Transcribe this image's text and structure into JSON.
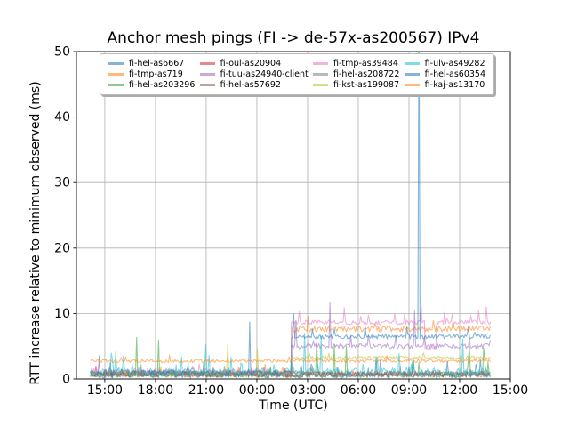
{
  "title": "Anchor mesh pings (FI -> de-57x-as200567) IPv4",
  "axes": {
    "xlabel": "Time (UTC)",
    "ylabel": "RTT increase relative to minimum observed (ms)",
    "xlim_hours": [
      -1.68,
      24.0
    ],
    "ylim": [
      0,
      50
    ],
    "x_ticks": [
      {
        "t": 0,
        "label": "15:00"
      },
      {
        "t": 3,
        "label": "18:00"
      },
      {
        "t": 6,
        "label": "21:00"
      },
      {
        "t": 9,
        "label": "00:00"
      },
      {
        "t": 12,
        "label": "03:00"
      },
      {
        "t": 15,
        "label": "06:00"
      },
      {
        "t": 18,
        "label": "09:00"
      },
      {
        "t": 21,
        "label": "12:00"
      },
      {
        "t": 24,
        "label": "15:00"
      }
    ],
    "y_ticks": [
      {
        "v": 0,
        "label": "0"
      },
      {
        "v": 10,
        "label": "10"
      },
      {
        "v": 20,
        "label": "20"
      },
      {
        "v": 30,
        "label": "30"
      },
      {
        "v": 40,
        "label": "40"
      },
      {
        "v": 50,
        "label": "50"
      }
    ],
    "grid": true,
    "grid_color": "#b0b0b0",
    "spine_color": "#000000"
  },
  "legend": {
    "position": "upper center",
    "columns": 4,
    "items": [
      {
        "label": "fi-hel-as6667",
        "color": "#1f77b4"
      },
      {
        "label": "fi-tmp-as719",
        "color": "#ff7f0e"
      },
      {
        "label": "fi-hel-as203296",
        "color": "#2ca02c"
      },
      {
        "label": "fi-oul-as20904",
        "color": "#d62728"
      },
      {
        "label": "fi-tuu-as24940-client",
        "color": "#9467bd"
      },
      {
        "label": "fi-hel-as57692",
        "color": "#8c564b"
      },
      {
        "label": "fi-tmp-as39484",
        "color": "#e377c2"
      },
      {
        "label": "fi-hel-as208722",
        "color": "#7f7f7f"
      },
      {
        "label": "fi-kst-as199087",
        "color": "#bcbd22"
      },
      {
        "label": "fi-ulv-as49282",
        "color": "#17becf"
      },
      {
        "label": "fi-hel-as60354",
        "color": "#1f77b4"
      },
      {
        "label": "fi-kaj-as13170",
        "color": "#ff7f0e"
      }
    ]
  },
  "chart_data": {
    "type": "line",
    "title": "Anchor mesh pings (FI -> de-57x-as200567) IPv4",
    "xlabel": "Time (UTC)",
    "ylabel": "RTT increase relative to minimum observed (ms)",
    "x_unit": "hours relative to first 15:00 tick",
    "time_range": [
      -0.85,
      22.85
    ],
    "ylim": [
      0,
      50
    ],
    "sample_step_hours": 0.065,
    "line_opacity": 0.55,
    "line_width": 1.1,
    "series": [
      {
        "name": "fi-hel-as6667",
        "color": "#1f77b4",
        "seed": 101,
        "baseline_segments": [
          {
            "from": -0.85,
            "to": 22.85,
            "base": 0.15,
            "jitter": 1.1,
            "burst_prob": 0.05,
            "burst_amp": 2.8
          }
        ],
        "spikes": [
          {
            "t": 8.58,
            "v": 8.7
          },
          {
            "t": -0.3,
            "v": 3.5
          }
        ]
      },
      {
        "name": "fi-tmp-as719",
        "color": "#ff7f0e",
        "seed": 202,
        "baseline_segments": [
          {
            "from": -0.85,
            "to": 11.05,
            "base": 0.3,
            "jitter": 0.9,
            "burst_prob": 0.03,
            "burst_amp": 1.2
          },
          {
            "from": 11.05,
            "to": 22.85,
            "base": 7.2,
            "jitter": 0.9,
            "burst_prob": 0.05,
            "burst_amp": 1.3
          }
        ],
        "spikes": [
          {
            "t": 12.0,
            "v": 9.6
          }
        ]
      },
      {
        "name": "fi-hel-as203296",
        "color": "#2ca02c",
        "seed": 303,
        "baseline_segments": [
          {
            "from": -0.85,
            "to": 22.85,
            "base": 0.2,
            "jitter": 0.9,
            "burst_prob": 0.05,
            "burst_amp": 2.2
          }
        ],
        "spikes": [
          {
            "t": 1.9,
            "v": 6.3
          },
          {
            "t": 3.2,
            "v": 5.9
          },
          {
            "t": 12.55,
            "v": 5.6
          },
          {
            "t": 13.6,
            "v": 5.2
          },
          {
            "t": 14.3,
            "v": 5.0
          },
          {
            "t": 21.6,
            "v": 4.9
          },
          {
            "t": 22.4,
            "v": 4.7
          }
        ]
      },
      {
        "name": "fi-oul-as20904",
        "color": "#d62728",
        "seed": 404,
        "baseline_segments": [
          {
            "from": -0.85,
            "to": 22.85,
            "base": 0.4,
            "jitter": 0.8,
            "burst_prob": 0.02,
            "burst_amp": 1.0
          }
        ],
        "spikes": []
      },
      {
        "name": "fi-tuu-as24940-client",
        "color": "#9467bd",
        "seed": 505,
        "baseline_segments": [
          {
            "from": -0.85,
            "to": 11.05,
            "base": 0.4,
            "jitter": 1.0,
            "burst_prob": 0.02,
            "burst_amp": 1.2
          },
          {
            "from": 11.05,
            "to": 22.85,
            "base": 4.6,
            "jitter": 0.8,
            "burst_prob": 0.04,
            "burst_amp": 1.6
          }
        ],
        "spikes": [
          {
            "t": 13.35,
            "v": 11.6
          },
          {
            "t": 18.3,
            "v": 10.4
          },
          {
            "t": 11.3,
            "v": 8.9
          }
        ]
      },
      {
        "name": "fi-hel-as57692",
        "color": "#8c564b",
        "seed": 606,
        "baseline_segments": [
          {
            "from": -0.85,
            "to": 22.85,
            "base": 0.25,
            "jitter": 0.75,
            "burst_prob": 0.02,
            "burst_amp": 0.9
          }
        ],
        "spikes": []
      },
      {
        "name": "fi-tmp-as39484",
        "color": "#e377c2",
        "seed": 707,
        "baseline_segments": [
          {
            "from": -0.85,
            "to": 11.05,
            "base": 0.5,
            "jitter": 1.1,
            "burst_prob": 0.03,
            "burst_amp": 1.4
          },
          {
            "from": 11.05,
            "to": 18.95,
            "base": 8.3,
            "jitter": 0.7,
            "burst_prob": 0.06,
            "burst_amp": 1.6
          },
          {
            "from": 18.95,
            "to": 19.65,
            "base": 4.5,
            "jitter": 0.5,
            "burst_prob": 0.02,
            "burst_amp": 0.8
          },
          {
            "from": 19.65,
            "to": 22.85,
            "base": 8.3,
            "jitter": 0.7,
            "burst_prob": 0.06,
            "burst_amp": 1.7
          }
        ],
        "spikes": [
          {
            "t": 11.5,
            "v": 10.3
          },
          {
            "t": 14.2,
            "v": 10.9
          },
          {
            "t": 18.7,
            "v": 11.2
          },
          {
            "t": 20.1,
            "v": 10.2
          },
          {
            "t": 22.55,
            "v": 11.0
          }
        ]
      },
      {
        "name": "fi-hel-as208722",
        "color": "#7f7f7f",
        "seed": 808,
        "baseline_segments": [
          {
            "from": -0.85,
            "to": 22.85,
            "base": 0.3,
            "jitter": 1.0,
            "burst_prob": 0.03,
            "burst_amp": 1.1
          }
        ],
        "spikes": []
      },
      {
        "name": "fi-kst-as199087",
        "color": "#bcbd22",
        "seed": 909,
        "baseline_segments": [
          {
            "from": -0.85,
            "to": 11.05,
            "base": 0.4,
            "jitter": 0.9,
            "burst_prob": 0.03,
            "burst_amp": 1.1
          },
          {
            "from": 11.05,
            "to": 22.85,
            "base": 3.0,
            "jitter": 0.5,
            "burst_prob": 0.04,
            "burst_amp": 0.9
          }
        ],
        "spikes": [
          {
            "t": 7.3,
            "v": 5.3
          },
          {
            "t": 9.0,
            "v": 4.6
          }
        ]
      },
      {
        "name": "fi-ulv-as49282",
        "color": "#17becf",
        "seed": 1010,
        "baseline_segments": [
          {
            "from": -0.85,
            "to": 22.85,
            "base": 0.4,
            "jitter": 1.3,
            "burst_prob": 0.07,
            "burst_amp": 2.6
          }
        ],
        "spikes": [
          {
            "t": 6.0,
            "v": 5.2
          },
          {
            "t": 11.85,
            "v": 7.0
          },
          {
            "t": 12.8,
            "v": 6.5
          },
          {
            "t": 21.2,
            "v": 6.1
          }
        ]
      },
      {
        "name": "fi-hel-as60354",
        "color": "#1f77b4",
        "seed": 1111,
        "baseline_segments": [
          {
            "from": -0.85,
            "to": 11.05,
            "base": 0.4,
            "jitter": 1.0,
            "burst_prob": 0.03,
            "burst_amp": 1.4
          },
          {
            "from": 11.05,
            "to": 22.85,
            "base": 6.1,
            "jitter": 0.7,
            "burst_prob": 0.05,
            "burst_amp": 1.8
          }
        ],
        "spikes": [
          {
            "t": 18.58,
            "v": 60
          },
          {
            "t": 11.15,
            "v": 9.9
          }
        ]
      },
      {
        "name": "fi-kaj-as13170",
        "color": "#ff7f0e",
        "seed": 1212,
        "baseline_segments": [
          {
            "from": -0.85,
            "to": 22.85,
            "base": 2.5,
            "jitter": 0.5,
            "burst_prob": 0.05,
            "burst_amp": 1.0
          }
        ],
        "spikes": []
      }
    ]
  }
}
